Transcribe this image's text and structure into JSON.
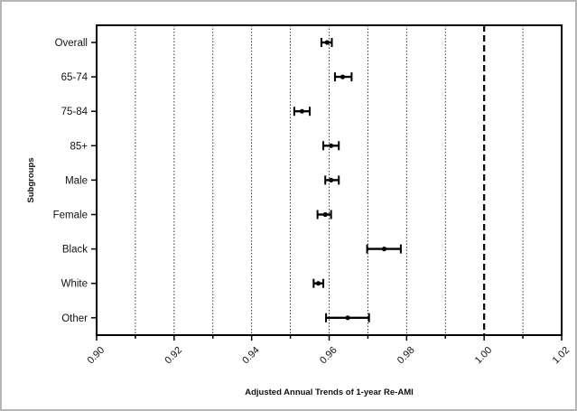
{
  "chart_data": {
    "type": "forest",
    "title": "",
    "xlabel": "Adjusted Annual Trends of 1-year Re-AMI",
    "ylabel": "Subgroups",
    "xlim": [
      0.9,
      1.02
    ],
    "xticks": [
      0.9,
      0.91,
      0.92,
      0.93,
      0.94,
      0.95,
      0.96,
      0.97,
      0.98,
      0.99,
      1.0,
      1.01,
      1.02
    ],
    "xtick_labels": [
      "0.90",
      "0.92",
      "0.94",
      "0.96",
      "0.98",
      "1.00",
      "1.02"
    ],
    "grid": "vertical dotted at 0.01 intervals",
    "reference_line": 1.0,
    "categories": [
      "Overall",
      "65-74",
      "75-84",
      "85+",
      "Male",
      "Female",
      "Black",
      "White",
      "Other"
    ],
    "estimates": [
      0.9595,
      0.9635,
      0.953,
      0.9605,
      0.9605,
      0.959,
      0.9742,
      0.9572,
      0.9648
    ],
    "lower": [
      0.958,
      0.9615,
      0.951,
      0.9585,
      0.959,
      0.957,
      0.9698,
      0.956,
      0.9592
    ],
    "upper": [
      0.9607,
      0.9658,
      0.955,
      0.9625,
      0.9625,
      0.9605,
      0.9785,
      0.9585,
      0.9703
    ]
  }
}
